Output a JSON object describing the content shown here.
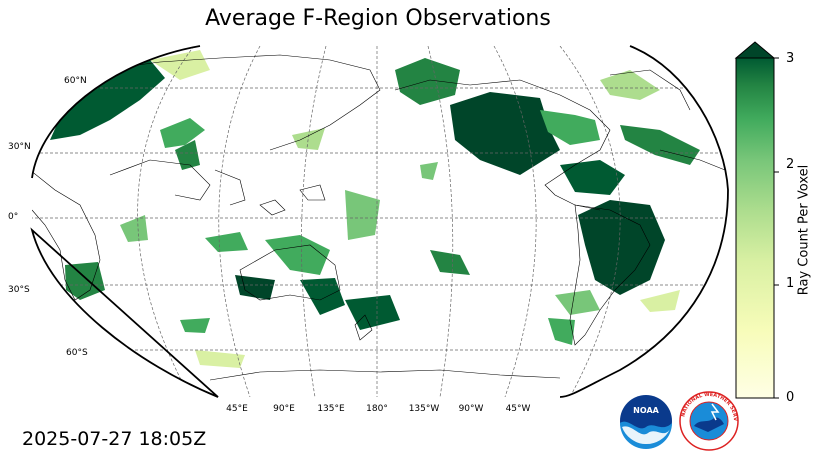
{
  "title": "Average F-Region Observations",
  "timestamp": "2025-07-27 18:05Z",
  "lat_labels": [
    "60°N",
    "30°N",
    "0°",
    "30°S",
    "60°S"
  ],
  "lon_labels": [
    "45°E",
    "90°E",
    "135°E",
    "180°",
    "135°W",
    "90°W",
    "45°W"
  ],
  "colorbar": {
    "label": "Ray Count Per Voxel",
    "ticks": [
      "0",
      "1",
      "2",
      "3"
    ],
    "min": 0,
    "max": 3,
    "extend": "max",
    "color_low": "#ffffe5",
    "color_mid": "#78c679",
    "color_high": "#004529"
  },
  "logos": [
    {
      "name": "noaa-logo",
      "text": "NOAA"
    },
    {
      "name": "nws-logo",
      "text": "NATIONAL WEATHER SERVICE"
    }
  ]
}
